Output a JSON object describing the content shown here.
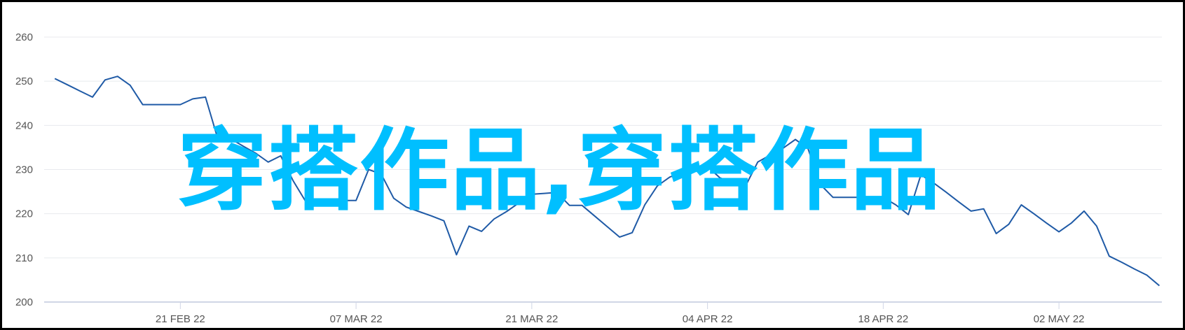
{
  "chart_data": {
    "type": "line",
    "title": "",
    "xlabel": "",
    "ylabel": "",
    "ylim": [
      200,
      260
    ],
    "yticks": [
      200,
      210,
      220,
      230,
      240,
      250,
      260
    ],
    "xticks": [
      {
        "date": "2022-02-21",
        "label": "21 FEB 22"
      },
      {
        "date": "2022-03-07",
        "label": "07 MAR 22"
      },
      {
        "date": "2022-03-21",
        "label": "21 MAR 22"
      },
      {
        "date": "2022-04-04",
        "label": "04 APR 22"
      },
      {
        "date": "2022-04-18",
        "label": "18 APR 22"
      },
      {
        "date": "2022-05-02",
        "label": "02 MAY 22"
      }
    ],
    "grid": true,
    "line_color": "#1f5aa6",
    "series": [
      {
        "x": [
          "2022-02-11",
          "2022-02-12",
          "2022-02-13",
          "2022-02-14",
          "2022-02-15",
          "2022-02-16",
          "2022-02-17",
          "2022-02-18",
          "2022-02-19",
          "2022-02-20",
          "2022-02-21",
          "2022-02-22",
          "2022-02-23",
          "2022-02-24",
          "2022-02-25",
          "2022-02-26",
          "2022-02-27",
          "2022-02-28",
          "2022-03-01",
          "2022-03-02",
          "2022-03-03",
          "2022-03-04",
          "2022-03-05",
          "2022-03-06",
          "2022-03-07",
          "2022-03-08",
          "2022-03-09",
          "2022-03-10",
          "2022-03-11",
          "2022-03-12",
          "2022-03-13",
          "2022-03-14",
          "2022-03-15",
          "2022-03-16",
          "2022-03-17",
          "2022-03-18",
          "2022-03-19",
          "2022-03-20",
          "2022-03-21",
          "2022-03-22",
          "2022-03-23",
          "2022-03-24",
          "2022-03-25",
          "2022-03-26",
          "2022-03-27",
          "2022-03-28",
          "2022-03-29",
          "2022-03-30",
          "2022-03-31",
          "2022-04-01",
          "2022-04-02",
          "2022-04-03",
          "2022-04-04",
          "2022-04-05",
          "2022-04-06",
          "2022-04-07",
          "2022-04-08",
          "2022-04-09",
          "2022-04-10",
          "2022-04-11",
          "2022-04-12",
          "2022-04-13",
          "2022-04-14",
          "2022-04-15",
          "2022-04-16",
          "2022-04-17",
          "2022-04-18",
          "2022-04-19",
          "2022-04-20",
          "2022-04-21",
          "2022-04-22",
          "2022-04-23",
          "2022-04-24",
          "2022-04-25",
          "2022-04-26",
          "2022-04-27",
          "2022-04-28",
          "2022-04-29",
          "2022-04-30",
          "2022-05-01",
          "2022-05-02",
          "2022-05-03",
          "2022-05-04",
          "2022-05-05",
          "2022-05-06",
          "2022-05-07",
          "2022-05-08",
          "2022-05-09",
          "2022-05-10"
        ],
        "values": [
          250.6,
          249.2,
          247.8,
          246.4,
          250.3,
          251.1,
          249.1,
          244.7,
          244.7,
          244.7,
          244.7,
          246.0,
          246.4,
          236.8,
          237.0,
          235.3,
          233.7,
          231.7,
          233.1,
          227.4,
          222.7,
          223.0,
          223.0,
          223.0,
          223.0,
          230.0,
          229.0,
          223.5,
          221.5,
          220.5,
          219.5,
          218.4,
          210.7,
          217.2,
          216.0,
          218.8,
          220.5,
          222.5,
          224.4,
          224.6,
          224.8,
          221.9,
          221.9,
          219.5,
          217.1,
          214.7,
          215.7,
          222.0,
          226.3,
          228.3,
          229.3,
          230.0,
          230.7,
          228.1,
          227.1,
          226.1,
          231.7,
          233.3,
          234.8,
          236.8,
          234.8,
          226.6,
          223.7,
          223.7,
          223.7,
          223.7,
          223.7,
          222.0,
          219.8,
          228.8,
          227.0,
          224.9,
          222.7,
          220.6,
          221.1,
          215.5,
          217.6,
          222.0,
          220.0,
          217.9,
          215.9,
          217.9,
          220.6,
          217.2,
          210.4,
          209.0,
          207.5,
          206.1,
          203.7
        ]
      }
    ]
  },
  "watermark": "穿搭作品,穿搭作品"
}
